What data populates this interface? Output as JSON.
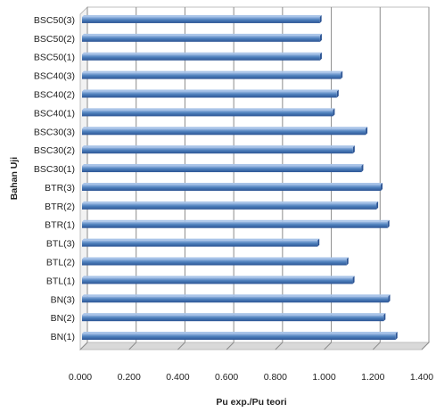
{
  "chart_data": {
    "type": "bar",
    "orientation": "horizontal",
    "categories": [
      "BN(1)",
      "BN(2)",
      "BN(3)",
      "BTL(1)",
      "BTL(2)",
      "BTL(3)",
      "BTR(1)",
      "BTR(2)",
      "BTR(3)",
      "BSC30(1)",
      "BSC30(2)",
      "BSC30(3)",
      "BSC40(1)",
      "BSC40(2)",
      "BSC40(3)",
      "BSC50(1)",
      "BSC50(2)",
      "BSC50(3)"
    ],
    "values": [
      1.293,
      1.244,
      1.263,
      1.117,
      1.092,
      0.973,
      1.26,
      1.214,
      1.232,
      1.153,
      1.118,
      1.17,
      1.036,
      1.052,
      1.068,
      0.983,
      0.983,
      0.982
    ],
    "xlabel": "Pu exp./Pu teori",
    "ylabel": "Bahan Uji",
    "xlim": [
      0,
      1.4
    ],
    "xticks": [
      "0.000",
      "0.200",
      "0.400",
      "0.600",
      "0.800",
      "1.000",
      "1.200",
      "1.400"
    ],
    "grid": true,
    "colors": {
      "bar": "#4f81bd",
      "bar_dark": "#2c5494",
      "bar_light": "#a9c4e8",
      "grid": "#8c8c8c",
      "floor": "#d9d9d9"
    }
  }
}
